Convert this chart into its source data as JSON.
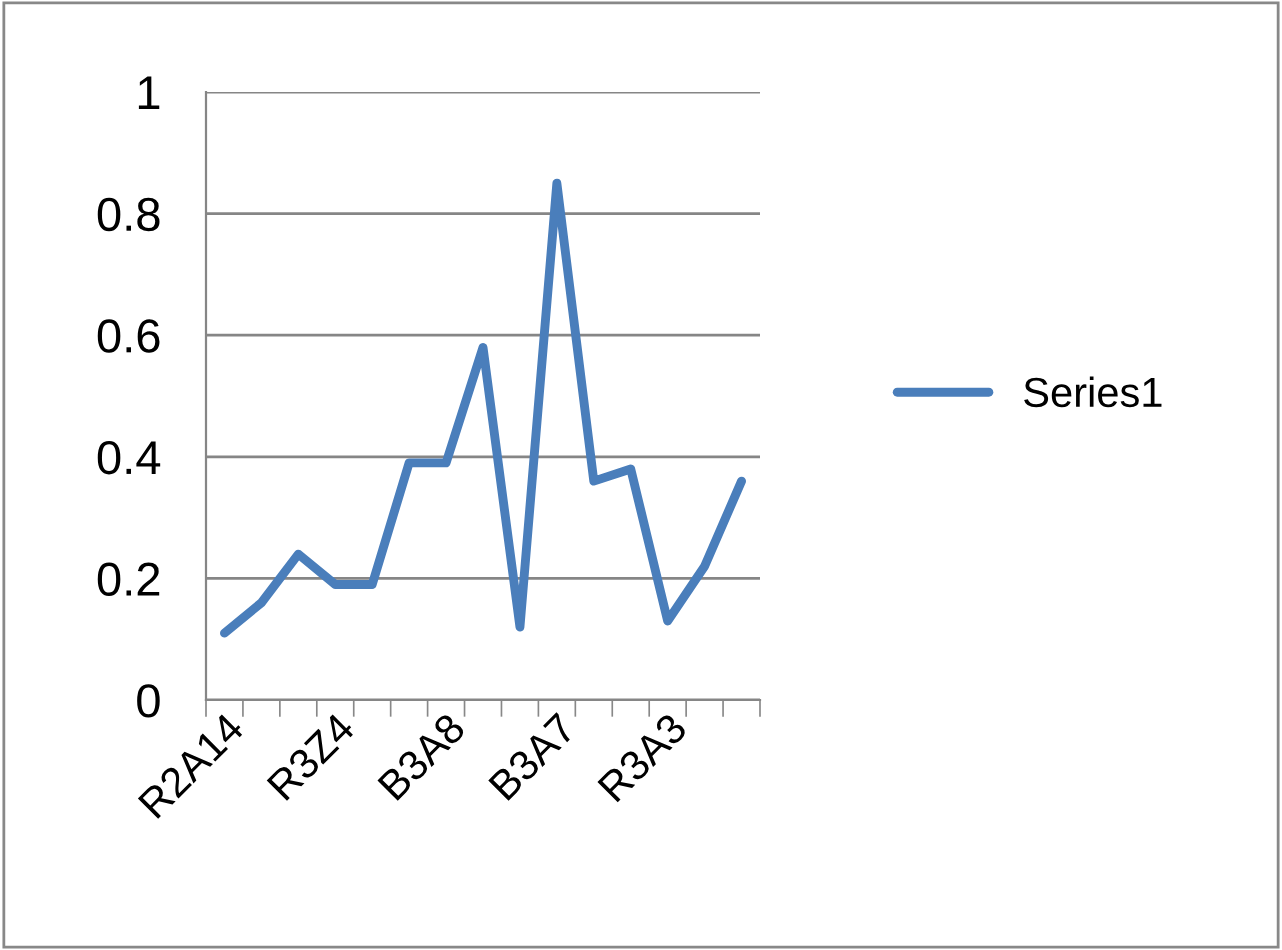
{
  "chart_data": {
    "type": "line",
    "categories": [
      "R2A14",
      null,
      null,
      "R3Z4",
      null,
      null,
      "B3A8",
      null,
      null,
      "B3A7",
      null,
      null,
      "R3A3",
      null,
      null
    ],
    "series": [
      {
        "name": "Series1",
        "color": "#4a7ebb",
        "values": [
          0.11,
          0.16,
          0.24,
          0.19,
          0.19,
          0.39,
          0.39,
          0.58,
          0.12,
          0.85,
          0.36,
          0.38,
          0.13,
          0.22,
          0.36
        ]
      }
    ],
    "ylim": [
      0,
      1
    ],
    "yticks": [
      0,
      0.2,
      0.4,
      0.6,
      0.8,
      1
    ],
    "grid": "y",
    "legend": "right",
    "marker": "none",
    "line_style": "solid"
  }
}
